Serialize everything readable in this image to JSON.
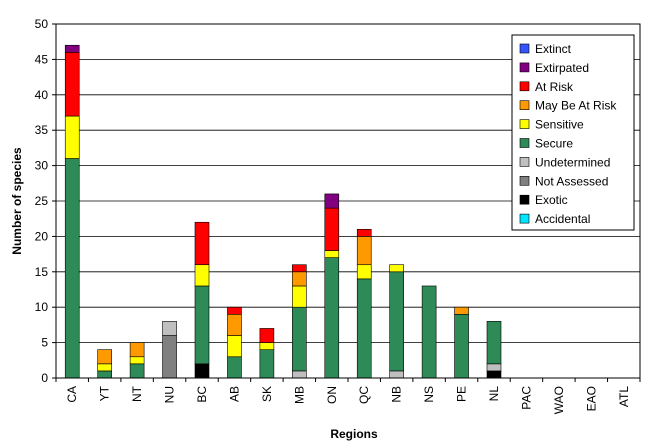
{
  "chart_data": {
    "type": "bar",
    "stacked": true,
    "xlabel": "Regions",
    "ylabel": "Number of species",
    "ylim": [
      0,
      50
    ],
    "yticks": [
      0,
      5,
      10,
      15,
      20,
      25,
      30,
      35,
      40,
      45,
      50
    ],
    "grid": true,
    "legend_position": "top-right",
    "categories": [
      "CA",
      "YT",
      "NT",
      "NU",
      "BC",
      "AB",
      "SK",
      "MB",
      "ON",
      "QC",
      "NB",
      "NS",
      "PE",
      "NL",
      "PAC",
      "WAO",
      "EAO",
      "ATL"
    ],
    "series": [
      {
        "name": "Exotic",
        "color": "#000000",
        "values": [
          0,
          0,
          0,
          0,
          2,
          0,
          0,
          0,
          0,
          0,
          0,
          0,
          0,
          1,
          0,
          0,
          0,
          0
        ]
      },
      {
        "name": "Not Assessed",
        "color": "#808080",
        "values": [
          0,
          0,
          0,
          6,
          0,
          0,
          0,
          0,
          0,
          0,
          0,
          0,
          0,
          0,
          0,
          0,
          0,
          0
        ]
      },
      {
        "name": "Undetermined",
        "color": "#bfbfbf",
        "values": [
          0,
          0,
          0,
          2,
          0,
          0,
          0,
          1,
          0,
          0,
          1,
          0,
          0,
          1,
          0,
          0,
          0,
          0
        ]
      },
      {
        "name": "Secure",
        "color": "#2e8b57",
        "values": [
          31,
          1,
          2,
          0,
          11,
          3,
          4,
          9,
          17,
          14,
          14,
          13,
          9,
          6,
          0,
          0,
          0,
          0
        ]
      },
      {
        "name": "Sensitive",
        "color": "#ffff00",
        "values": [
          6,
          1,
          1,
          0,
          3,
          3,
          1,
          3,
          1,
          2,
          1,
          0,
          0,
          0,
          0,
          0,
          0,
          0
        ]
      },
      {
        "name": "May Be At Risk",
        "color": "#ff9900",
        "values": [
          0,
          2,
          2,
          0,
          0,
          3,
          0,
          2,
          0,
          4,
          0,
          0,
          1,
          0,
          0,
          0,
          0,
          0
        ]
      },
      {
        "name": "At Risk",
        "color": "#ff0000",
        "values": [
          9,
          0,
          0,
          0,
          6,
          1,
          2,
          1,
          6,
          1,
          0,
          0,
          0,
          0,
          0,
          0,
          0,
          0
        ]
      },
      {
        "name": "Extirpated",
        "color": "#800080",
        "values": [
          1,
          0,
          0,
          0,
          0,
          0,
          0,
          0,
          2,
          0,
          0,
          0,
          0,
          0,
          0,
          0,
          0,
          0
        ]
      },
      {
        "name": "Extinct",
        "color": "#3355ff",
        "values": [
          0,
          0,
          0,
          0,
          0,
          0,
          0,
          0,
          0,
          0,
          0,
          0,
          0,
          0,
          0,
          0,
          0,
          0
        ]
      },
      {
        "name": "Accidental",
        "color": "#00e5ff",
        "values": [
          0,
          0,
          0,
          0,
          0,
          0,
          0,
          0,
          0,
          0,
          0,
          0,
          0,
          0,
          0,
          0,
          0,
          0
        ]
      }
    ],
    "legend_order": [
      "Extinct",
      "Extirpated",
      "At Risk",
      "May Be At Risk",
      "Sensitive",
      "Secure",
      "Undetermined",
      "Not Assessed",
      "Exotic",
      "Accidental"
    ]
  }
}
